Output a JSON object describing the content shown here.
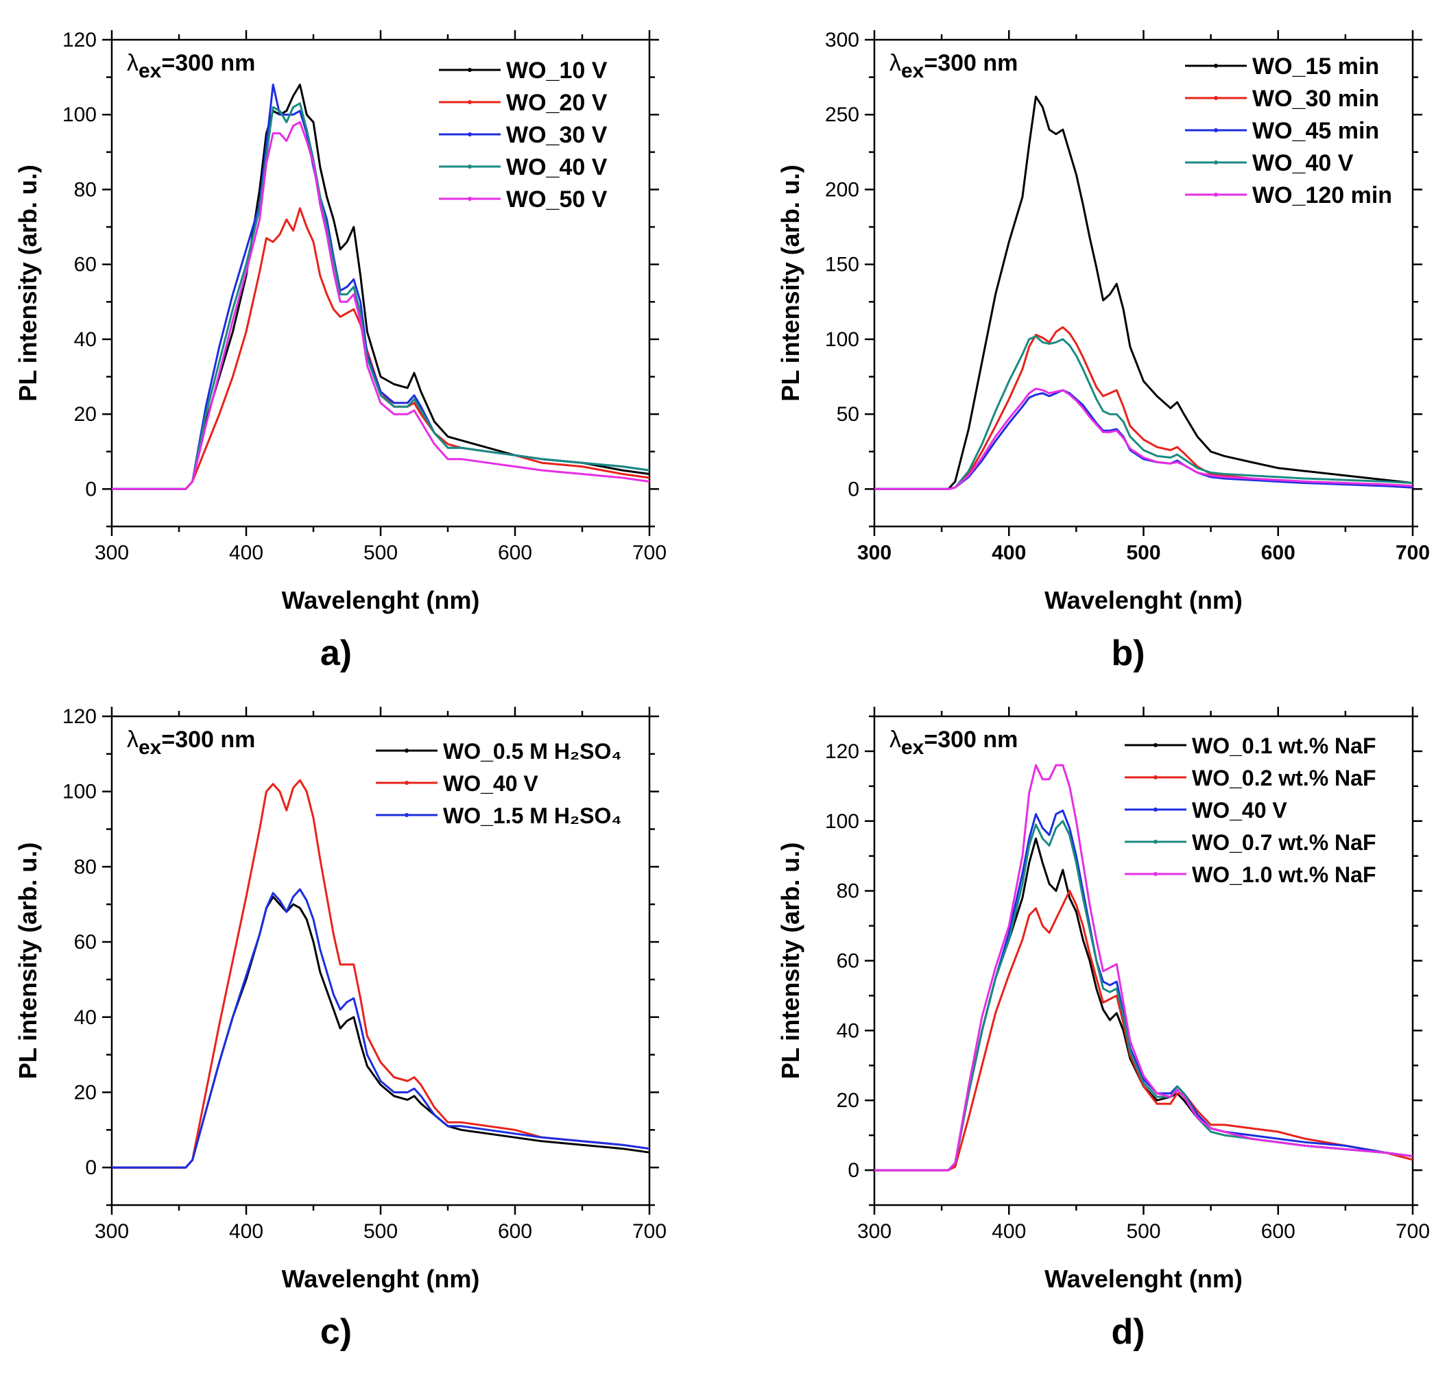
{
  "figure": {
    "panels": [
      {
        "label": "a)",
        "ex_text": {
          "lambda": "λ",
          "sub": "ex",
          "rest": "=300 nm"
        }
      },
      {
        "label": "b)",
        "ex_text": {
          "lambda": "λ",
          "sub": "ex",
          "rest": "=300 nm"
        }
      },
      {
        "label": "c)",
        "ex_text": {
          "lambda": "λ",
          "sub": "ex",
          "rest": "=300 nm"
        }
      },
      {
        "label": "d)",
        "ex_text": {
          "lambda": "λ",
          "sub": "ex",
          "rest": "=300 nm"
        }
      }
    ]
  },
  "chart_data": [
    {
      "type": "line",
      "xlabel": "Wavelenght (nm)",
      "ylabel": "PL intensity (arb. u.)",
      "xlim": [
        300,
        700
      ],
      "ylim": [
        -10,
        120
      ],
      "xticks": [
        300,
        400,
        500,
        600,
        700
      ],
      "yticks": [
        0,
        20,
        40,
        60,
        80,
        100,
        120
      ],
      "legend_position": "top-right",
      "x": [
        300,
        340,
        355,
        360,
        370,
        380,
        390,
        400,
        410,
        415,
        420,
        425,
        430,
        435,
        440,
        445,
        450,
        455,
        460,
        465,
        470,
        475,
        480,
        485,
        490,
        500,
        510,
        520,
        525,
        530,
        540,
        550,
        560,
        580,
        600,
        620,
        650,
        680,
        700
      ],
      "series": [
        {
          "name": "WO_10 V",
          "color": "#000000",
          "values": [
            0,
            0,
            0,
            2,
            18,
            30,
            42,
            57,
            80,
            95,
            101,
            100,
            101,
            105,
            108,
            100,
            98,
            86,
            78,
            72,
            64,
            66,
            70,
            57,
            42,
            30,
            28,
            27,
            31,
            26,
            18,
            14,
            13,
            11,
            9,
            8,
            7,
            5,
            4
          ]
        },
        {
          "name": "WO_20 V",
          "color": "#e8231b",
          "values": [
            0,
            0,
            0,
            2,
            11,
            20,
            30,
            42,
            58,
            67,
            66,
            68,
            72,
            69,
            75,
            70,
            66,
            57,
            52,
            48,
            46,
            47,
            48,
            44,
            37,
            26,
            22,
            22,
            23,
            20,
            15,
            12,
            11,
            10,
            9,
            7,
            6,
            4,
            3
          ]
        },
        {
          "name": "WO_30 V",
          "color": "#1c2ee0",
          "values": [
            0,
            0,
            0,
            2,
            22,
            38,
            52,
            64,
            76,
            92,
            108,
            100,
            100,
            100,
            101,
            95,
            86,
            78,
            72,
            62,
            53,
            54,
            56,
            50,
            36,
            26,
            23,
            23,
            25,
            22,
            15,
            11,
            11,
            10,
            9,
            8,
            7,
            6,
            5
          ]
        },
        {
          "name": "WO_40 V",
          "color": "#1a8a82",
          "values": [
            0,
            0,
            0,
            2,
            20,
            34,
            48,
            60,
            75,
            89,
            102,
            101,
            98,
            102,
            103,
            96,
            88,
            78,
            70,
            61,
            52,
            52,
            54,
            47,
            35,
            25,
            22,
            22,
            24,
            21,
            15,
            11,
            11,
            10,
            9,
            8,
            7,
            6,
            5
          ]
        },
        {
          "name": "WO_50 V",
          "color": "#e62ee6",
          "values": [
            0,
            0,
            0,
            2,
            17,
            31,
            45,
            58,
            72,
            87,
            95,
            95,
            93,
            97,
            98,
            93,
            87,
            76,
            68,
            58,
            50,
            50,
            52,
            45,
            33,
            23,
            20,
            20,
            21,
            18,
            12,
            8,
            8,
            7,
            6,
            5,
            4,
            3,
            2
          ]
        }
      ]
    },
    {
      "type": "line",
      "xlabel": "Wavelenght (nm)",
      "ylabel": "PL intensity (arb. u.)",
      "xlim": [
        300,
        700
      ],
      "ylim": [
        -25,
        300
      ],
      "xticks": [
        300,
        400,
        500,
        600,
        700
      ],
      "yticks": [
        0,
        50,
        100,
        150,
        200,
        250,
        300
      ],
      "legend_position": "top-right",
      "x": [
        300,
        340,
        355,
        360,
        370,
        380,
        390,
        400,
        410,
        415,
        420,
        425,
        430,
        435,
        440,
        445,
        450,
        455,
        460,
        465,
        470,
        475,
        480,
        485,
        490,
        500,
        510,
        520,
        525,
        530,
        540,
        550,
        560,
        580,
        600,
        620,
        650,
        680,
        700
      ],
      "series": [
        {
          "name": "WO_15 min",
          "color": "#000000",
          "values": [
            0,
            0,
            0,
            5,
            40,
            85,
            130,
            165,
            195,
            230,
            262,
            255,
            240,
            237,
            240,
            225,
            210,
            190,
            168,
            148,
            126,
            130,
            137,
            120,
            95,
            72,
            62,
            54,
            58,
            50,
            35,
            25,
            22,
            18,
            14,
            12,
            9,
            6,
            4
          ]
        },
        {
          "name": "WO_30 min",
          "color": "#e8231b",
          "values": [
            0,
            0,
            0,
            1,
            10,
            25,
            42,
            60,
            80,
            95,
            103,
            101,
            98,
            105,
            108,
            104,
            97,
            88,
            78,
            68,
            62,
            64,
            66,
            55,
            42,
            33,
            28,
            26,
            28,
            24,
            15,
            10,
            9,
            7,
            6,
            5,
            4,
            3,
            2
          ]
        },
        {
          "name": "WO_45 min",
          "color": "#1c2ee0",
          "values": [
            0,
            0,
            0,
            1,
            8,
            19,
            32,
            44,
            55,
            61,
            63,
            64,
            62,
            64,
            66,
            64,
            60,
            56,
            50,
            44,
            39,
            39,
            40,
            35,
            26,
            20,
            18,
            17,
            19,
            16,
            11,
            8,
            7,
            6,
            5,
            4,
            3,
            2,
            1
          ]
        },
        {
          "name": "WO_40 V",
          "color": "#1a8a82",
          "values": [
            0,
            0,
            0,
            1,
            12,
            30,
            52,
            72,
            90,
            100,
            102,
            98,
            97,
            98,
            100,
            96,
            89,
            80,
            70,
            60,
            52,
            50,
            50,
            45,
            35,
            26,
            22,
            21,
            23,
            20,
            14,
            11,
            10,
            9,
            8,
            7,
            6,
            5,
            4
          ]
        },
        {
          "name": "WO_120 min",
          "color": "#e62ee6",
          "values": [
            0,
            0,
            0,
            1,
            9,
            21,
            35,
            47,
            58,
            64,
            67,
            66,
            64,
            65,
            66,
            63,
            59,
            54,
            48,
            43,
            38,
            38,
            39,
            34,
            27,
            21,
            18,
            17,
            18,
            16,
            11,
            9,
            8,
            7,
            6,
            5,
            4,
            3,
            2
          ]
        }
      ]
    },
    {
      "type": "line",
      "xlabel": "Wavelenght (nm)",
      "ylabel": "PL intensity (arb. u.)",
      "xlim": [
        300,
        700
      ],
      "ylim": [
        -10,
        120
      ],
      "xticks": [
        300,
        400,
        500,
        600,
        700
      ],
      "yticks": [
        0,
        20,
        40,
        60,
        80,
        100,
        120
      ],
      "legend_position": "top-right",
      "x": [
        300,
        340,
        355,
        360,
        370,
        380,
        390,
        400,
        410,
        415,
        420,
        425,
        430,
        435,
        440,
        445,
        450,
        455,
        460,
        465,
        470,
        475,
        480,
        485,
        490,
        500,
        510,
        520,
        525,
        530,
        540,
        550,
        560,
        580,
        600,
        620,
        650,
        680,
        700
      ],
      "series": [
        {
          "name": "WO_0.5 M H₂SO₄",
          "color": "#000000",
          "values": [
            0,
            0,
            0,
            2,
            15,
            28,
            40,
            50,
            62,
            69,
            72,
            70,
            68,
            70,
            69,
            66,
            60,
            52,
            47,
            42,
            37,
            39,
            40,
            33,
            27,
            22,
            19,
            18,
            19,
            17,
            14,
            11,
            10,
            9,
            8,
            7,
            6,
            5,
            4
          ]
        },
        {
          "name": "WO_40 V",
          "color": "#e8231b",
          "values": [
            0,
            0,
            0,
            2,
            20,
            38,
            55,
            72,
            90,
            100,
            102,
            100,
            95,
            101,
            103,
            100,
            93,
            82,
            72,
            62,
            54,
            54,
            54,
            45,
            35,
            28,
            24,
            23,
            24,
            22,
            16,
            12,
            12,
            11,
            10,
            8,
            7,
            6,
            5
          ]
        },
        {
          "name": "WO_1.5 M H₂SO₄",
          "color": "#1c2ee0",
          "values": [
            0,
            0,
            0,
            2,
            15,
            28,
            40,
            51,
            62,
            69,
            73,
            71,
            68,
            72,
            74,
            71,
            66,
            58,
            52,
            46,
            42,
            44,
            45,
            38,
            30,
            23,
            20,
            20,
            21,
            19,
            14,
            11,
            11,
            10,
            9,
            8,
            7,
            6,
            5
          ]
        }
      ]
    },
    {
      "type": "line",
      "xlabel": "Wavelenght (nm)",
      "ylabel": "PL intensity (arb. u.)",
      "xlim": [
        300,
        700
      ],
      "ylim": [
        -10,
        130
      ],
      "xticks": [
        300,
        400,
        500,
        600,
        700
      ],
      "yticks": [
        0,
        20,
        40,
        60,
        80,
        100,
        120
      ],
      "legend_position": "top-right",
      "x": [
        300,
        340,
        355,
        360,
        370,
        380,
        390,
        400,
        410,
        415,
        420,
        425,
        430,
        435,
        440,
        445,
        450,
        455,
        460,
        465,
        470,
        475,
        480,
        485,
        490,
        500,
        510,
        520,
        525,
        530,
        540,
        550,
        560,
        580,
        600,
        620,
        650,
        680,
        700
      ],
      "series": [
        {
          "name": "WO_0.1 wt.% NaF",
          "color": "#000000",
          "values": [
            0,
            0,
            0,
            2,
            22,
            40,
            55,
            66,
            78,
            88,
            95,
            88,
            82,
            80,
            86,
            78,
            74,
            66,
            60,
            52,
            46,
            43,
            45,
            40,
            32,
            24,
            20,
            21,
            22,
            20,
            15,
            12,
            11,
            9,
            8,
            7,
            6,
            5,
            4
          ]
        },
        {
          "name": "WO_0.2 wt.% NaF",
          "color": "#e8231b",
          "values": [
            0,
            0,
            0,
            1,
            15,
            30,
            45,
            56,
            66,
            73,
            75,
            70,
            68,
            72,
            76,
            80,
            76,
            70,
            62,
            55,
            48,
            49,
            50,
            42,
            33,
            24,
            19,
            19,
            22,
            22,
            17,
            13,
            13,
            12,
            11,
            9,
            7,
            5,
            3
          ]
        },
        {
          "name": "WO_40 V",
          "color": "#1c2ee0",
          "values": [
            0,
            0,
            0,
            2,
            22,
            40,
            55,
            68,
            85,
            95,
            102,
            98,
            96,
            102,
            103,
            98,
            90,
            80,
            70,
            60,
            54,
            53,
            54,
            45,
            35,
            26,
            22,
            22,
            24,
            22,
            16,
            12,
            11,
            10,
            9,
            8,
            7,
            5,
            4
          ]
        },
        {
          "name": "WO_0.7 wt.% NaF",
          "color": "#1a8a82",
          "values": [
            0,
            0,
            0,
            2,
            22,
            40,
            55,
            66,
            82,
            93,
            99,
            95,
            93,
            98,
            100,
            96,
            88,
            78,
            69,
            60,
            52,
            51,
            52,
            44,
            34,
            25,
            21,
            21,
            24,
            22,
            15,
            11,
            10,
            9,
            8,
            7,
            6,
            5,
            4
          ]
        },
        {
          "name": "WO_1.0 wt.% NaF",
          "color": "#e62ee6",
          "values": [
            0,
            0,
            0,
            2,
            24,
            44,
            58,
            70,
            90,
            108,
            116,
            112,
            112,
            116,
            116,
            110,
            100,
            88,
            76,
            66,
            57,
            58,
            59,
            48,
            37,
            27,
            22,
            21,
            23,
            21,
            15,
            12,
            11,
            9,
            8,
            7,
            6,
            5,
            4
          ]
        }
      ]
    }
  ]
}
